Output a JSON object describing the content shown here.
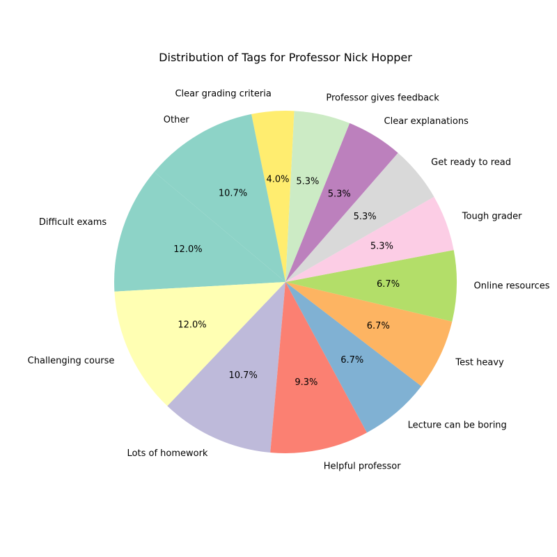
{
  "chart_data": {
    "type": "pie",
    "title": "Distribution of Tags for Professor Nick Hopper",
    "slices": [
      {
        "label": "Difficult exams",
        "percent": 12.0,
        "percent_label": "12.0%",
        "color": "#8dd3c7"
      },
      {
        "label": "Challenging course",
        "percent": 12.0,
        "percent_label": "12.0%",
        "color": "#ffffb3"
      },
      {
        "label": "Lots of homework",
        "percent": 10.7,
        "percent_label": "10.7%",
        "color": "#bebada"
      },
      {
        "label": "Helpful professor",
        "percent": 9.3,
        "percent_label": "9.3%",
        "color": "#fb8072"
      },
      {
        "label": "Lecture can be boring",
        "percent": 6.7,
        "percent_label": "6.7%",
        "color": "#80b1d3"
      },
      {
        "label": "Test heavy",
        "percent": 6.7,
        "percent_label": "6.7%",
        "color": "#fdb462"
      },
      {
        "label": "Online resources",
        "percent": 6.7,
        "percent_label": "6.7%",
        "color": "#b3de69"
      },
      {
        "label": "Tough grader",
        "percent": 5.3,
        "percent_label": "5.3%",
        "color": "#fccde5"
      },
      {
        "label": "Get ready to read",
        "percent": 5.3,
        "percent_label": "5.3%",
        "color": "#d9d9d9"
      },
      {
        "label": "Clear explanations",
        "percent": 5.3,
        "percent_label": "5.3%",
        "color": "#bc80bd"
      },
      {
        "label": "Professor gives feedback",
        "percent": 5.3,
        "percent_label": "5.3%",
        "color": "#ccebc5"
      },
      {
        "label": "Clear grading criteria",
        "percent": 4.0,
        "percent_label": "4.0%",
        "color": "#ffed6f"
      },
      {
        "label": "Other",
        "percent": 10.7,
        "percent_label": "10.7%",
        "color": "#8dd3c7"
      }
    ],
    "start_angle_deg": 140,
    "direction": "counterclockwise",
    "legend": "none"
  }
}
